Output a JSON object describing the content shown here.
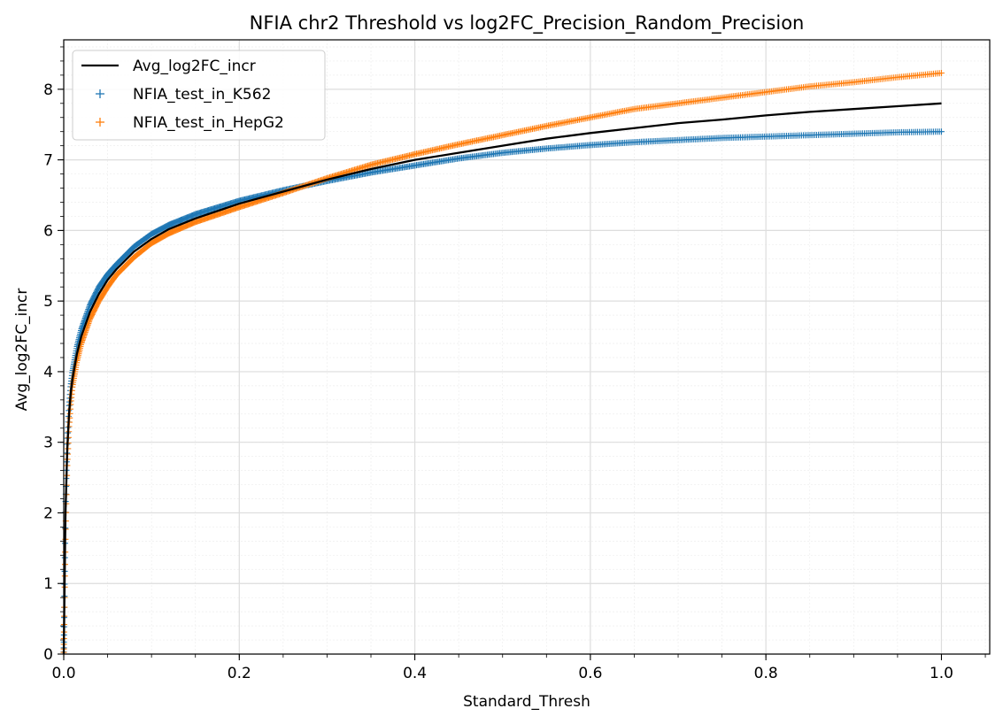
{
  "chart_data": {
    "type": "line",
    "title": "NFIA chr2 Threshold vs log2FC_Precision_Random_Precision",
    "xlabel": "Standard_Thresh",
    "ylabel": "Avg_log2FC_incr",
    "xlim": [
      0.0,
      1.055
    ],
    "ylim": [
      0,
      8.7
    ],
    "xticks": [
      0.0,
      0.2,
      0.4,
      0.6,
      0.8,
      1.0
    ],
    "xtick_labels": [
      "0.0",
      "0.2",
      "0.4",
      "0.6",
      "0.8",
      "1.0"
    ],
    "yticks": [
      0,
      1,
      2,
      3,
      4,
      5,
      6,
      7,
      8
    ],
    "ytick_labels": [
      "0",
      "1",
      "2",
      "3",
      "4",
      "5",
      "6",
      "7",
      "8"
    ],
    "grid": true,
    "minor_grid": true,
    "legend_position": "top-left",
    "series": [
      {
        "name": "Avg_log2FC_incr",
        "kind": "line",
        "color": "#000000",
        "x": [
          0.0,
          0.002,
          0.004,
          0.006,
          0.008,
          0.01,
          0.015,
          0.02,
          0.03,
          0.04,
          0.05,
          0.06,
          0.08,
          0.1,
          0.12,
          0.15,
          0.2,
          0.25,
          0.3,
          0.35,
          0.4,
          0.45,
          0.5,
          0.55,
          0.6,
          0.65,
          0.7,
          0.75,
          0.8,
          0.85,
          0.9,
          0.95,
          1.0
        ],
        "y": [
          0.0,
          2.0,
          2.9,
          3.4,
          3.7,
          3.9,
          4.25,
          4.5,
          4.85,
          5.1,
          5.3,
          5.45,
          5.7,
          5.88,
          6.02,
          6.17,
          6.38,
          6.55,
          6.72,
          6.87,
          7.0,
          7.1,
          7.2,
          7.3,
          7.38,
          7.45,
          7.52,
          7.57,
          7.63,
          7.68,
          7.72,
          7.76,
          7.8
        ]
      },
      {
        "name": "NFIA_test_in_K562",
        "kind": "scatter",
        "marker": "+",
        "color": "#1f77b4",
        "x": [
          0.0,
          0.002,
          0.004,
          0.006,
          0.008,
          0.01,
          0.015,
          0.02,
          0.03,
          0.04,
          0.05,
          0.06,
          0.08,
          0.1,
          0.12,
          0.15,
          0.2,
          0.25,
          0.3,
          0.35,
          0.4,
          0.45,
          0.5,
          0.55,
          0.6,
          0.65,
          0.7,
          0.75,
          0.8,
          0.85,
          0.9,
          0.95,
          1.0
        ],
        "y": [
          0.0,
          2.1,
          3.0,
          3.5,
          3.8,
          4.0,
          4.35,
          4.6,
          4.95,
          5.2,
          5.38,
          5.52,
          5.77,
          5.95,
          6.08,
          6.23,
          6.42,
          6.57,
          6.7,
          6.82,
          6.92,
          7.02,
          7.1,
          7.16,
          7.21,
          7.25,
          7.28,
          7.31,
          7.33,
          7.35,
          7.37,
          7.39,
          7.4
        ]
      },
      {
        "name": "NFIA_test_in_HepG2",
        "kind": "scatter",
        "marker": "+",
        "color": "#ff7f0e",
        "x": [
          0.0,
          0.002,
          0.004,
          0.006,
          0.008,
          0.01,
          0.015,
          0.02,
          0.03,
          0.04,
          0.05,
          0.06,
          0.08,
          0.1,
          0.12,
          0.15,
          0.2,
          0.25,
          0.3,
          0.35,
          0.4,
          0.45,
          0.5,
          0.55,
          0.6,
          0.65,
          0.7,
          0.75,
          0.8,
          0.85,
          0.9,
          0.95,
          1.0
        ],
        "y": [
          0.0,
          1.7,
          2.7,
          3.2,
          3.55,
          3.8,
          4.15,
          4.4,
          4.75,
          5.0,
          5.2,
          5.37,
          5.62,
          5.82,
          5.96,
          6.12,
          6.33,
          6.53,
          6.74,
          6.93,
          7.08,
          7.22,
          7.35,
          7.48,
          7.6,
          7.72,
          7.8,
          7.88,
          7.96,
          8.04,
          8.1,
          8.17,
          8.23
        ]
      }
    ]
  }
}
